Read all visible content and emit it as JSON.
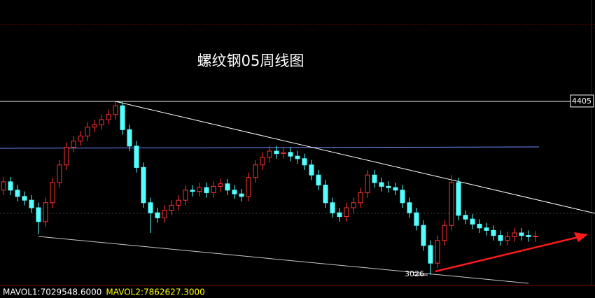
{
  "chart_data": {
    "type": "candlestick",
    "title": "螺纹钢05周线图",
    "up_color": "#ff3232",
    "down_color": "#54ffff",
    "ylim": [
      2960,
      5210
    ],
    "open": [
      3700,
      3766,
      3700,
      3650,
      3620,
      3560,
      3450,
      3600,
      3760,
      3900,
      4040,
      4090,
      4130,
      4200,
      4220,
      4260,
      4300,
      4370,
      4180,
      4050,
      3880,
      3600,
      3520,
      3480,
      3540,
      3580,
      3620,
      3700,
      3690,
      3720,
      3680,
      3730,
      3750,
      3700,
      3670,
      3650,
      3800,
      3900,
      3960,
      4010,
      3990,
      4000,
      3970,
      3950,
      3900,
      3820,
      3740,
      3600,
      3520,
      3490,
      3560,
      3600,
      3680,
      3820,
      3760,
      3730,
      3720,
      3700,
      3600,
      3520,
      3420,
      3260,
      3120,
      3300,
      3420,
      3760,
      3500,
      3470,
      3430,
      3400,
      3380,
      3340,
      3300,
      3330,
      3360,
      3340,
      3330
    ],
    "high": [
      3806,
      3806,
      3740,
      3690,
      3660,
      3600,
      3640,
      3800,
      3940,
      4080,
      4130,
      4170,
      4240,
      4260,
      4300,
      4340,
      4405,
      4400,
      4220,
      4090,
      3920,
      3640,
      3560,
      3580,
      3620,
      3660,
      3740,
      3740,
      3760,
      3760,
      3770,
      3790,
      3790,
      3740,
      3710,
      3840,
      3940,
      4000,
      4050,
      4050,
      4040,
      4040,
      4010,
      3990,
      3940,
      3860,
      3780,
      3640,
      3560,
      3600,
      3640,
      3720,
      3860,
      3860,
      3800,
      3770,
      3760,
      3740,
      3640,
      3560,
      3460,
      3300,
      3340,
      3460,
      3820,
      3800,
      3540,
      3510,
      3470,
      3440,
      3420,
      3380,
      3370,
      3400,
      3400,
      3380,
      3375
    ],
    "low": [
      3660,
      3660,
      3610,
      3580,
      3520,
      3350,
      3410,
      3560,
      3720,
      3860,
      4000,
      4050,
      4090,
      4160,
      4180,
      4220,
      4260,
      4140,
      4010,
      3840,
      3560,
      3360,
      3440,
      3440,
      3500,
      3540,
      3580,
      3650,
      3650,
      3640,
      3640,
      3690,
      3660,
      3630,
      3610,
      3610,
      3760,
      3860,
      3920,
      3950,
      3950,
      3930,
      3910,
      3860,
      3780,
      3700,
      3560,
      3480,
      3450,
      3450,
      3520,
      3560,
      3640,
      3720,
      3690,
      3680,
      3660,
      3560,
      3480,
      3380,
      3220,
      3026,
      3080,
      3260,
      3380,
      3460,
      3430,
      3390,
      3360,
      3340,
      3300,
      3260,
      3260,
      3290,
      3300,
      3290,
      3290
    ],
    "close": [
      3766,
      3700,
      3650,
      3620,
      3560,
      3450,
      3600,
      3760,
      3900,
      4040,
      4090,
      4130,
      4200,
      4220,
      4260,
      4300,
      4370,
      4180,
      4050,
      3880,
      3600,
      3520,
      3480,
      3540,
      3580,
      3620,
      3700,
      3690,
      3720,
      3680,
      3730,
      3750,
      3700,
      3670,
      3650,
      3800,
      3900,
      3960,
      4010,
      3990,
      4000,
      3970,
      3950,
      3900,
      3820,
      3740,
      3600,
      3520,
      3490,
      3560,
      3600,
      3680,
      3820,
      3760,
      3730,
      3720,
      3700,
      3600,
      3520,
      3420,
      3260,
      3120,
      3300,
      3420,
      3760,
      3500,
      3470,
      3430,
      3400,
      3380,
      3340,
      3300,
      3330,
      3360,
      3340,
      3330,
      3335
    ],
    "level_index": 16,
    "low_index": 61,
    "indicators": [
      {
        "text": "MAVOL1:7029548.6000",
        "color": "#ffffff"
      },
      {
        "text": "MAVOL2:7862627.3000",
        "color": "#ffff00"
      }
    ]
  }
}
